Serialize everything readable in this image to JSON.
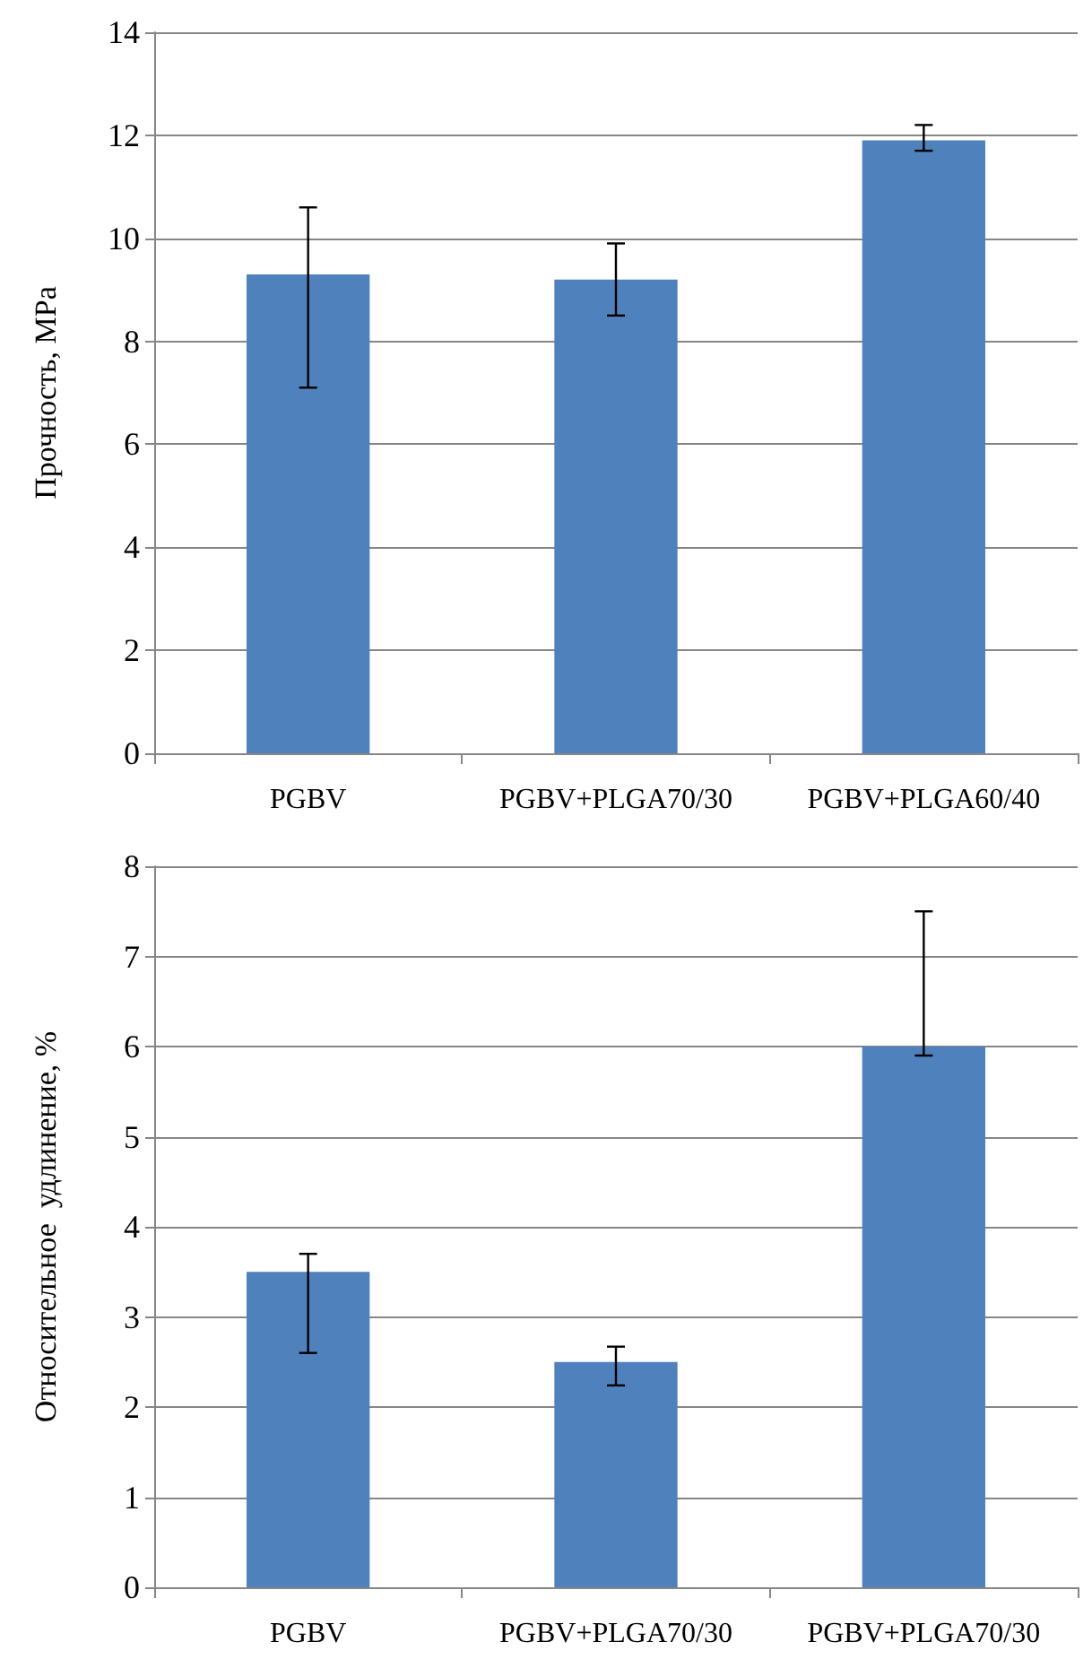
{
  "chart_data": [
    {
      "type": "bar",
      "ylabel": "Прочность, МPa",
      "categories": [
        "PGBV",
        "PGBV+PLGA70/30",
        "PGBV+PLGA60/40"
      ],
      "values": [
        9.3,
        9.2,
        11.9
      ],
      "color": "#4f81bd",
      "errors": [
        [
          7.1,
          10.6
        ],
        [
          8.5,
          9.9
        ],
        [
          11.7,
          12.2
        ]
      ],
      "ylim": [
        0,
        14
      ],
      "yticks": [
        0,
        2,
        4,
        6,
        8,
        10,
        12,
        14
      ],
      "grid": "y"
    },
    {
      "type": "bar",
      "ylabel": "Относительное  удлинение, %",
      "categories": [
        "PGBV",
        "PGBV+PLGA70/30",
        "PGBV+PLGA70/30"
      ],
      "values": [
        3.5,
        2.5,
        6.0
      ],
      "color": "#4f81bd",
      "errors": [
        [
          2.6,
          3.7
        ],
        [
          2.24,
          2.67
        ],
        [
          5.9,
          7.5
        ]
      ],
      "ylim": [
        0,
        8
      ],
      "yticks": [
        0,
        1,
        2,
        3,
        4,
        5,
        6,
        7,
        8
      ],
      "grid": "y"
    }
  ]
}
